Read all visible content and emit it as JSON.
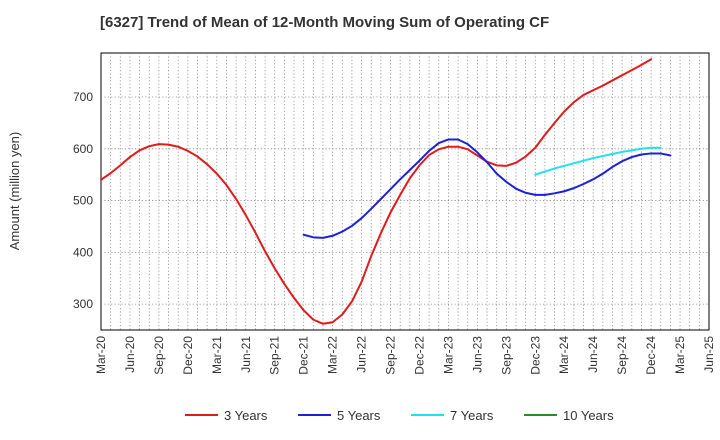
{
  "chart_data": {
    "type": "line",
    "title": "[6327]  Trend of Mean of 12-Month Moving Sum of Operating CF",
    "ylabel": "Amount (million yen)",
    "xlabel": "",
    "ylim": [
      250,
      785
    ],
    "yticks": [
      300,
      400,
      500,
      600,
      700
    ],
    "x_range_months": [
      "2020-03",
      "2025-06"
    ],
    "xtick_labels": [
      "Mar-20",
      "Jun-20",
      "Sep-20",
      "Dec-20",
      "Mar-21",
      "Jun-21",
      "Sep-21",
      "Dec-21",
      "Mar-22",
      "Jun-22",
      "Sep-22",
      "Dec-22",
      "Mar-23",
      "Jun-23",
      "Sep-23",
      "Dec-23",
      "Mar-24",
      "Jun-24",
      "Sep-24",
      "Dec-24",
      "Mar-25",
      "Jun-25"
    ],
    "grid": true,
    "legend_position": "bottom",
    "series": [
      {
        "name": "3 Years",
        "color": "#e01b1b",
        "start": "2020-03",
        "values": [
          540,
          553,
          568,
          584,
          597,
          605,
          609,
          608,
          604,
          596,
          585,
          570,
          552,
          530,
          503,
          472,
          438,
          402,
          369,
          339,
          312,
          288,
          270,
          262,
          265,
          280,
          305,
          343,
          393,
          437,
          477,
          511,
          543,
          568,
          588,
          599,
          604,
          604,
          599,
          587,
          575,
          568,
          567,
          573,
          585,
          602,
          627,
          650,
          672,
          690,
          704,
          713,
          722,
          732,
          742,
          752,
          762,
          773
        ]
      },
      {
        "name": "5 Years",
        "color": "#1b22d6",
        "start": "2021-12",
        "values": [
          434,
          429,
          428,
          432,
          440,
          451,
          466,
          484,
          503,
          522,
          541,
          559,
          577,
          596,
          611,
          618,
          618,
          609,
          593,
          574,
          552,
          536,
          523,
          515,
          511,
          511,
          514,
          518,
          524,
          532,
          541,
          552,
          565,
          576,
          584,
          589,
          591,
          591,
          587
        ]
      },
      {
        "name": "7 Years",
        "color": "#22e0ee",
        "start": "2023-12",
        "values": [
          550,
          556,
          562,
          567,
          572,
          577,
          582,
          586,
          590,
          594,
          597,
          600,
          602,
          602
        ]
      },
      {
        "name": "10 Years",
        "color": "#2a8a2a",
        "start": "2025-01",
        "values": []
      }
    ]
  }
}
